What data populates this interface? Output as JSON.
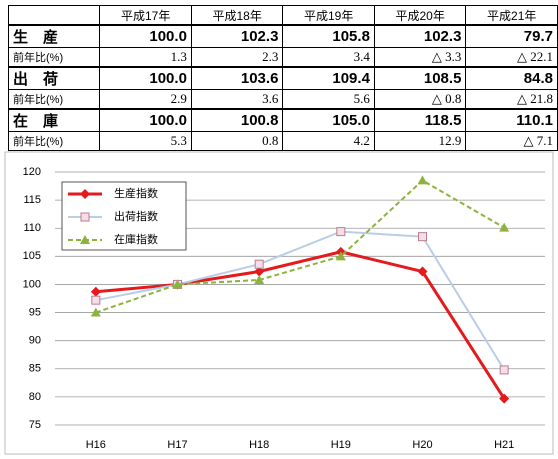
{
  "table": {
    "header": [
      "平成17年",
      "平成18年",
      "平成19年",
      "平成20年",
      "平成21年"
    ],
    "rows": [
      {
        "label": "生　産",
        "values": [
          "100.0",
          "102.3",
          "105.8",
          "102.3",
          "79.7"
        ],
        "ratio_label": "前年比(%)",
        "ratios": [
          "1.3",
          "2.3",
          "3.4",
          "△ 3.3",
          "△ 22.1"
        ]
      },
      {
        "label": "出　荷",
        "values": [
          "100.0",
          "103.6",
          "109.4",
          "108.5",
          "84.8"
        ],
        "ratio_label": "前年比(%)",
        "ratios": [
          "2.9",
          "3.6",
          "5.6",
          "△ 0.8",
          "△ 21.8"
        ]
      },
      {
        "label": "在　庫",
        "values": [
          "100.0",
          "100.8",
          "105.0",
          "118.5",
          "110.1"
        ],
        "ratio_label": "前年比(%)",
        "ratios": [
          "5.3",
          "0.8",
          "4.2",
          "12.9",
          "△ 7.1"
        ]
      }
    ]
  },
  "chart_data": {
    "type": "line",
    "categories": [
      "H16",
      "H17",
      "H18",
      "H19",
      "H20",
      "H21"
    ],
    "series": [
      {
        "name": "生産指数",
        "color": "#e41a1c",
        "marker": "diamond",
        "dash": false,
        "width": 3,
        "values": [
          98.7,
          100.0,
          102.3,
          105.8,
          102.3,
          79.7
        ]
      },
      {
        "name": "出荷指数",
        "color": "#b9cde5",
        "marker": "square",
        "dash": false,
        "width": 2,
        "values": [
          97.2,
          100.0,
          103.6,
          109.4,
          108.5,
          84.8
        ]
      },
      {
        "name": "在庫指数",
        "color": "#8db33f",
        "marker": "triangle",
        "dash": true,
        "width": 2,
        "values": [
          95.0,
          100.0,
          100.8,
          105.0,
          118.5,
          110.1
        ]
      }
    ],
    "ylim": [
      75,
      120
    ],
    "yticks": [
      75,
      80,
      85,
      90,
      95,
      100,
      105,
      110,
      115,
      120
    ],
    "grid": true,
    "legend": "upper left"
  }
}
